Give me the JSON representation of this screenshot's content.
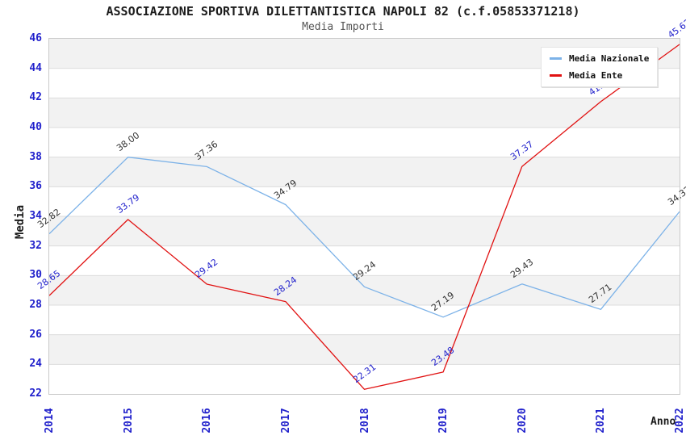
{
  "header": {
    "title": "ASSOCIAZIONE SPORTIVA DILETTANTISTICA NAPOLI 82 (c.f.05853371218)",
    "subtitle": "Media Importi"
  },
  "axes": {
    "y_title": "Media",
    "x_title": "Anno",
    "tick_color": "#2222cc"
  },
  "chart_data": {
    "type": "line",
    "title": "ASSOCIAZIONE SPORTIVA DILETTANTISTICA NAPOLI 82 (c.f.05853371218)",
    "subtitle": "Media Importi",
    "xlabel": "Anno",
    "ylabel": "Media",
    "categories": [
      "2014",
      "2015",
      "2016",
      "2017",
      "2018",
      "2019",
      "2020",
      "2021",
      "2022"
    ],
    "series": [
      {
        "name": "Media Nazionale",
        "color": "#7cb2e8",
        "label_color": "#333333",
        "values": [
          32.82,
          38.0,
          37.36,
          34.79,
          29.24,
          27.19,
          29.43,
          27.71,
          34.32
        ]
      },
      {
        "name": "Media Ente",
        "color": "#e11212",
        "label_color": "#2222cc",
        "values": [
          28.65,
          33.79,
          29.42,
          28.24,
          22.31,
          23.48,
          37.37,
          41.75,
          45.62
        ]
      }
    ],
    "ylim": [
      22,
      46
    ],
    "ytick_step": 2,
    "value_decimals": 2,
    "grid": true,
    "legend_position": "top-right",
    "band_colors": [
      "#f2f2f2",
      "#ffffff"
    ],
    "gridline_color": "#dcdcdc"
  }
}
